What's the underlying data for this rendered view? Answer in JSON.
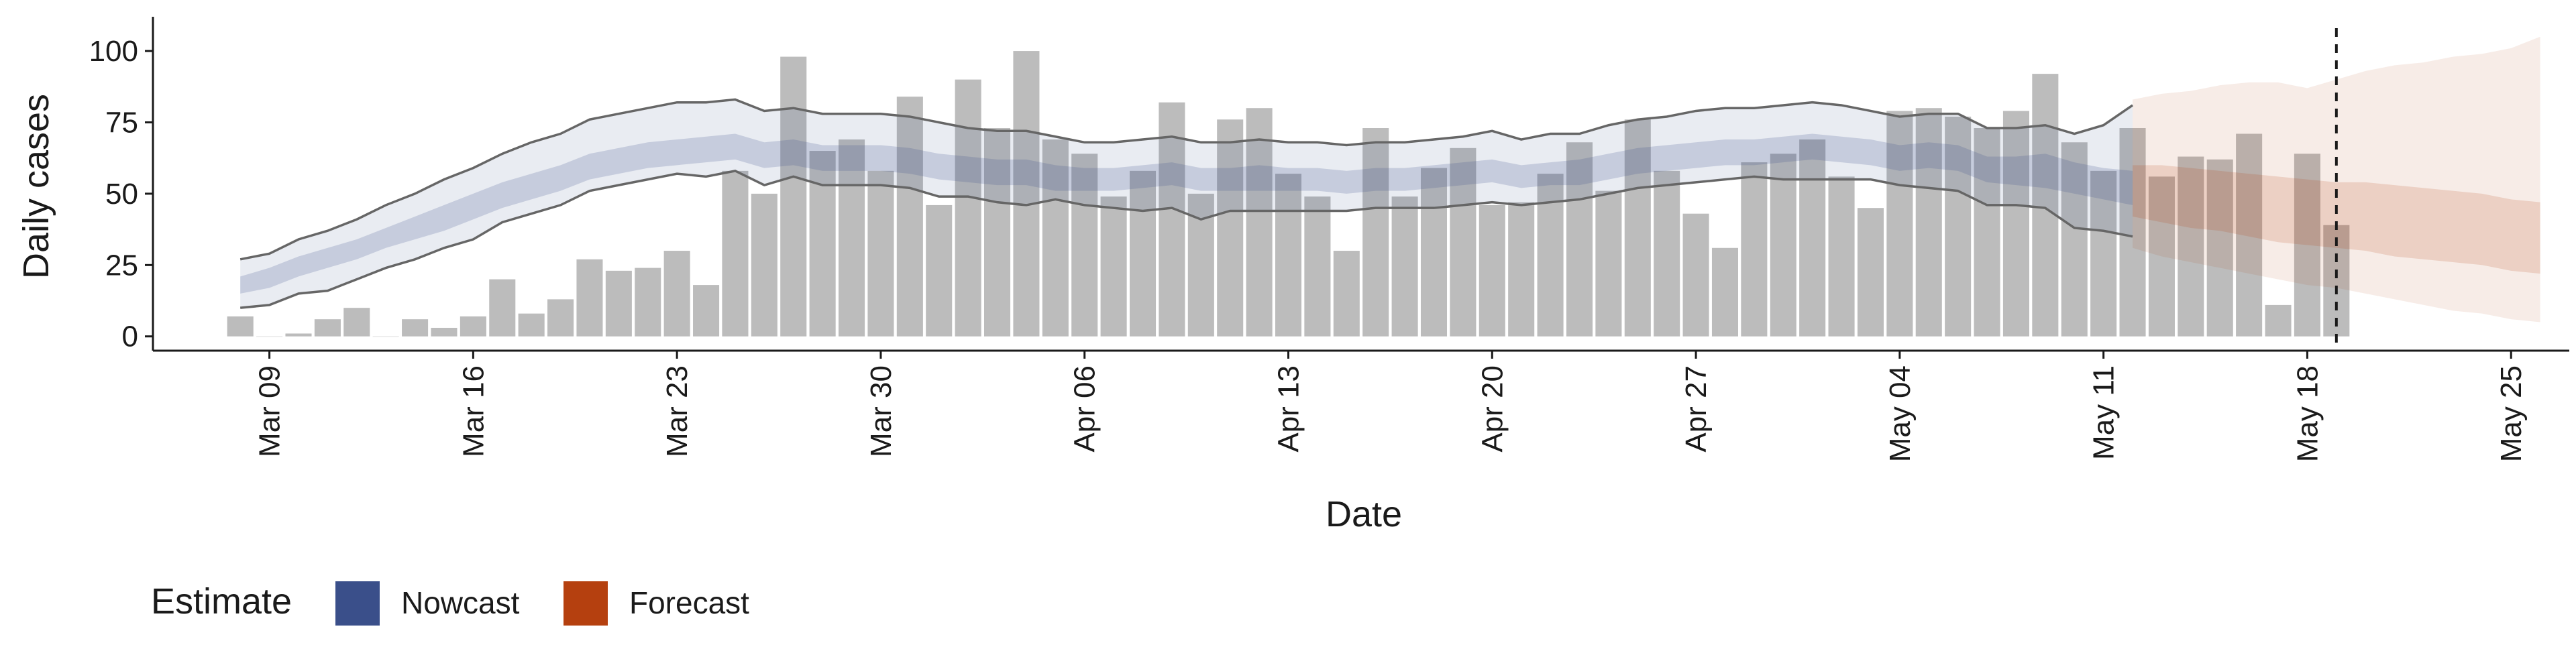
{
  "chart_data": {
    "type": "bar",
    "xlabel": "Date",
    "ylabel": "Daily cases",
    "ylim": [
      -5,
      112
    ],
    "yticks": [
      0,
      25,
      50,
      75,
      100
    ],
    "x_range": [
      "2020-03-05",
      "2020-05-27"
    ],
    "x_ticks": [
      "2020-03-09",
      "2020-03-16",
      "2020-03-23",
      "2020-03-30",
      "2020-04-06",
      "2020-04-13",
      "2020-04-20",
      "2020-04-27",
      "2020-05-04",
      "2020-05-11",
      "2020-05-18",
      "2020-05-25"
    ],
    "x_tick_labels": [
      "Mar 09",
      "Mar 16",
      "Mar 23",
      "Mar 30",
      "Apr 06",
      "Apr 13",
      "Apr 20",
      "Apr 27",
      "May 04",
      "May 11",
      "May 18",
      "May 25"
    ],
    "grid": false,
    "vline_date": "2020-05-19",
    "colors": {
      "bar": "#bcbcbc",
      "nowcast": "#3a4f8a",
      "forecast": "#b5400f",
      "outer_line": "#666666"
    },
    "bars": {
      "start_date": "2020-03-08",
      "values": [
        7,
        0,
        1,
        6,
        10,
        0,
        6,
        3,
        7,
        20,
        8,
        13,
        27,
        23,
        24,
        30,
        18,
        58,
        50,
        98,
        65,
        69,
        58,
        84,
        46,
        90,
        73,
        100,
        69,
        64,
        49,
        58,
        82,
        50,
        76,
        80,
        57,
        49,
        30,
        73,
        49,
        59,
        66,
        46,
        47,
        57,
        68,
        51,
        76,
        58,
        43,
        31,
        61,
        64,
        69,
        56,
        45,
        79,
        80,
        77,
        73,
        79,
        92,
        68,
        58,
        73,
        56,
        63,
        62,
        71,
        11,
        64,
        39
      ]
    },
    "nowcast": {
      "start_date": "2020-03-08",
      "upper90": [
        27,
        29,
        34,
        37,
        41,
        46,
        50,
        55,
        59,
        64,
        68,
        71,
        76,
        78,
        80,
        82,
        82,
        83,
        79,
        80,
        78,
        78,
        78,
        77,
        75,
        73,
        72,
        72,
        70,
        68,
        68,
        69,
        70,
        68,
        68,
        69,
        68,
        68,
        67,
        68,
        68,
        69,
        70,
        72,
        69,
        71,
        71,
        74,
        76,
        77,
        79,
        80,
        80,
        81,
        82,
        81,
        79,
        77,
        78,
        78,
        73,
        73,
        74,
        71,
        74,
        81
      ],
      "upper50": [
        21,
        24,
        28,
        31,
        34,
        38,
        42,
        46,
        50,
        54,
        57,
        60,
        64,
        66,
        68,
        69,
        70,
        71,
        68,
        69,
        67,
        67,
        67,
        66,
        64,
        63,
        62,
        62,
        60,
        59,
        59,
        60,
        61,
        59,
        59,
        60,
        59,
        59,
        58,
        59,
        59,
        60,
        61,
        62,
        60,
        61,
        62,
        64,
        66,
        67,
        68,
        69,
        69,
        70,
        71,
        70,
        69,
        67,
        68,
        67,
        63,
        63,
        64,
        61,
        59,
        58
      ],
      "lower50": [
        15,
        17,
        21,
        24,
        27,
        31,
        34,
        37,
        41,
        45,
        48,
        51,
        55,
        57,
        59,
        60,
        61,
        62,
        59,
        60,
        58,
        58,
        58,
        57,
        55,
        54,
        53,
        53,
        51,
        51,
        51,
        52,
        53,
        51,
        51,
        51,
        51,
        51,
        50,
        51,
        51,
        52,
        53,
        54,
        52,
        53,
        53,
        55,
        57,
        58,
        59,
        60,
        60,
        61,
        62,
        61,
        60,
        58,
        59,
        58,
        54,
        53,
        52,
        50,
        48,
        46
      ],
      "lower90": [
        10,
        11,
        15,
        16,
        20,
        24,
        27,
        31,
        34,
        40,
        43,
        46,
        51,
        53,
        55,
        57,
        56,
        58,
        53,
        56,
        53,
        53,
        53,
        52,
        49,
        49,
        47,
        46,
        48,
        46,
        45,
        44,
        45,
        41,
        44,
        44,
        44,
        44,
        44,
        45,
        45,
        45,
        46,
        47,
        46,
        47,
        48,
        50,
        52,
        53,
        54,
        55,
        56,
        55,
        55,
        55,
        55,
        53,
        52,
        51,
        46,
        46,
        45,
        38,
        37,
        35
      ]
    },
    "forecast": {
      "start_date": "2020-05-12",
      "upper90": [
        83,
        85,
        86,
        88,
        89,
        89,
        87,
        90,
        93,
        95,
        96,
        98,
        99,
        101,
        105
      ],
      "upper50": [
        60,
        60,
        59,
        58,
        57,
        56,
        55,
        54,
        54,
        53,
        52,
        51,
        50,
        48,
        47
      ],
      "lower50": [
        42,
        40,
        38,
        37,
        35,
        33,
        32,
        31,
        30,
        28,
        27,
        26,
        25,
        23,
        22
      ],
      "lower90": [
        31,
        28,
        26,
        24,
        22,
        20,
        18,
        17,
        15,
        13,
        11,
        9,
        8,
        6,
        5
      ]
    }
  },
  "legend": {
    "title": "Estimate",
    "items": [
      {
        "label": "Nowcast",
        "color": "#3a4f8a"
      },
      {
        "label": "Forecast",
        "color": "#b5400f"
      }
    ]
  }
}
